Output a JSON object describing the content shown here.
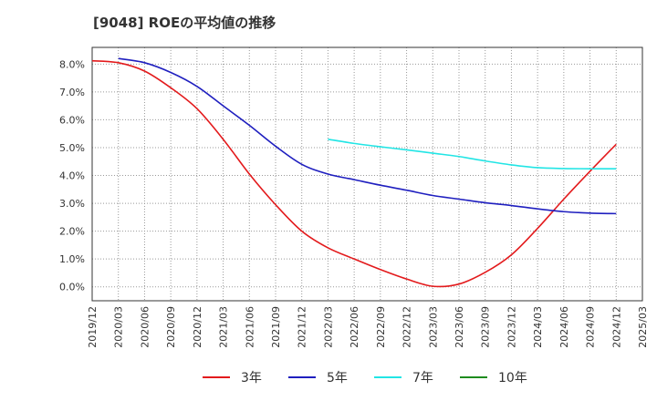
{
  "chart_data": {
    "type": "line",
    "title": "[9048]  ROEの平均値の推移",
    "xlabel": "",
    "ylabel": "",
    "ylim": [
      -0.5,
      8.6
    ],
    "y_ticks": [
      "0.0%",
      "1.0%",
      "2.0%",
      "3.0%",
      "4.0%",
      "5.0%",
      "6.0%",
      "7.0%",
      "8.0%"
    ],
    "x_ticks": [
      "2019/12",
      "2020/03",
      "2020/06",
      "2020/09",
      "2020/12",
      "2021/03",
      "2021/06",
      "2021/09",
      "2021/12",
      "2022/03",
      "2022/06",
      "2022/09",
      "2022/12",
      "2023/03",
      "2023/06",
      "2023/09",
      "2023/12",
      "2024/03",
      "2024/06",
      "2024/09",
      "2024/12",
      "2025/03"
    ],
    "grid": true,
    "legend_position": "bottom",
    "series": [
      {
        "name": "3年",
        "color": "#e31a1c",
        "points": [
          [
            "2019/12",
            8.12
          ],
          [
            "2020/03",
            8.05
          ],
          [
            "2020/06",
            7.75
          ],
          [
            "2020/09",
            7.15
          ],
          [
            "2020/12",
            6.4
          ],
          [
            "2021/03",
            5.3
          ],
          [
            "2021/06",
            4.05
          ],
          [
            "2021/09",
            2.95
          ],
          [
            "2021/12",
            2.0
          ],
          [
            "2022/03",
            1.4
          ],
          [
            "2022/06",
            1.0
          ],
          [
            "2022/09",
            0.62
          ],
          [
            "2022/12",
            0.28
          ],
          [
            "2023/03",
            0.02
          ],
          [
            "2023/06",
            0.1
          ],
          [
            "2023/09",
            0.52
          ],
          [
            "2023/12",
            1.15
          ],
          [
            "2024/03",
            2.1
          ],
          [
            "2024/06",
            3.15
          ],
          [
            "2024/09",
            4.15
          ],
          [
            "2024/12",
            5.12
          ]
        ]
      },
      {
        "name": "5年",
        "color": "#1f1fbf",
        "points": [
          [
            "2020/03",
            8.2
          ],
          [
            "2020/06",
            8.05
          ],
          [
            "2020/09",
            7.7
          ],
          [
            "2020/12",
            7.2
          ],
          [
            "2021/03",
            6.5
          ],
          [
            "2021/06",
            5.8
          ],
          [
            "2021/09",
            5.05
          ],
          [
            "2021/12",
            4.4
          ],
          [
            "2022/03",
            4.05
          ],
          [
            "2022/06",
            3.85
          ],
          [
            "2022/09",
            3.65
          ],
          [
            "2022/12",
            3.47
          ],
          [
            "2023/03",
            3.28
          ],
          [
            "2023/06",
            3.15
          ],
          [
            "2023/09",
            3.02
          ],
          [
            "2023/12",
            2.92
          ],
          [
            "2024/03",
            2.8
          ],
          [
            "2024/06",
            2.7
          ],
          [
            "2024/09",
            2.65
          ],
          [
            "2024/12",
            2.63
          ]
        ]
      },
      {
        "name": "7年",
        "color": "#22e5e5",
        "points": [
          [
            "2022/03",
            5.3
          ],
          [
            "2022/06",
            5.15
          ],
          [
            "2022/09",
            5.03
          ],
          [
            "2022/12",
            4.92
          ],
          [
            "2023/03",
            4.8
          ],
          [
            "2023/06",
            4.68
          ],
          [
            "2023/09",
            4.52
          ],
          [
            "2023/12",
            4.38
          ],
          [
            "2024/03",
            4.28
          ],
          [
            "2024/06",
            4.25
          ],
          [
            "2024/09",
            4.24
          ],
          [
            "2024/12",
            4.24
          ]
        ]
      },
      {
        "name": "10年",
        "color": "#1e8c1e",
        "points": []
      }
    ]
  }
}
